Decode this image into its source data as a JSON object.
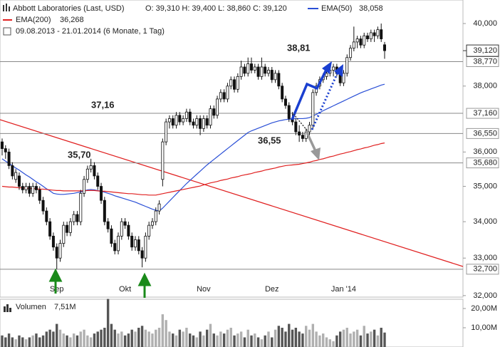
{
  "chart_data": {
    "type": "candlestick",
    "title": "Abbott Laboratories (Last, USD)",
    "quote": "O: 39,310  H: 39,400  L: 38,860  C: 39,120",
    "period": "09.08.2013 - 21.01.2014 (6 Monate, 1 Tag)",
    "log": true,
    "ylim": [
      31.96,
      40.78
    ],
    "yticks": [
      {
        "value": 40,
        "label": "40,000"
      },
      {
        "value": 38,
        "label": "38,000"
      },
      {
        "value": 36,
        "label": "36,000"
      },
      {
        "value": 35,
        "label": "35,000"
      },
      {
        "value": 34,
        "label": "34,000"
      },
      {
        "value": 33,
        "label": "33,000"
      },
      {
        "value": 32,
        "label": "32,000"
      }
    ],
    "categories": [
      null,
      null,
      null,
      null,
      null,
      null,
      null,
      null,
      null,
      null,
      null,
      null,
      null,
      null,
      null,
      null,
      "Sep",
      null,
      null,
      null,
      null,
      null,
      null,
      null,
      null,
      null,
      null,
      null,
      null,
      null,
      null,
      null,
      null,
      null,
      null,
      null,
      "Okt",
      null,
      null,
      null,
      null,
      null,
      null,
      null,
      null,
      null,
      null,
      null,
      null,
      null,
      null,
      null,
      null,
      null,
      null,
      null,
      null,
      null,
      null,
      "Nov",
      null,
      null,
      null,
      null,
      null,
      null,
      null,
      null,
      null,
      null,
      null,
      null,
      null,
      null,
      null,
      null,
      null,
      null,
      null,
      "Dez",
      null,
      null,
      null,
      null,
      null,
      null,
      null,
      null,
      null,
      null,
      null,
      null,
      null,
      null,
      null,
      null,
      null,
      null,
      null,
      null,
      "Jan '14",
      null,
      null,
      null,
      null,
      null,
      null,
      null,
      null,
      null,
      null,
      null,
      null
    ],
    "ohlc": [
      [
        36.3,
        36.4,
        35.9,
        36.1
      ],
      [
        36.1,
        36.2,
        35.8,
        36.0
      ],
      [
        36.0,
        36.1,
        35.5,
        35.6
      ],
      [
        35.6,
        35.7,
        35.2,
        35.3
      ],
      [
        35.2,
        35.5,
        35.1,
        35.4
      ],
      [
        35.3,
        35.4,
        34.9,
        35.0
      ],
      [
        35.0,
        35.1,
        34.8,
        34.9
      ],
      [
        34.9,
        35.1,
        34.8,
        35.0
      ],
      [
        35.0,
        35.1,
        34.7,
        34.8
      ],
      [
        34.8,
        35.1,
        34.7,
        35.0
      ],
      [
        35.0,
        35.1,
        34.8,
        34.9
      ],
      [
        34.9,
        35.0,
        34.5,
        34.6
      ],
      [
        34.6,
        34.7,
        34.2,
        34.3
      ],
      [
        34.3,
        34.4,
        33.9,
        34.0
      ],
      [
        34.0,
        34.1,
        33.5,
        33.6
      ],
      [
        33.6,
        33.7,
        33.2,
        33.3
      ],
      [
        33.3,
        33.4,
        32.7,
        33.0
      ],
      [
        33.0,
        33.5,
        32.9,
        33.4
      ],
      [
        33.4,
        34.0,
        33.3,
        33.9
      ],
      [
        33.9,
        34.0,
        33.6,
        33.7
      ],
      [
        33.7,
        34.1,
        33.6,
        34.0
      ],
      [
        34.0,
        34.3,
        33.9,
        34.2
      ],
      [
        34.2,
        34.3,
        33.9,
        34.0
      ],
      [
        34.0,
        34.9,
        33.9,
        34.8
      ],
      [
        34.8,
        35.3,
        34.7,
        35.2
      ],
      [
        35.2,
        35.6,
        35.1,
        35.5
      ],
      [
        35.5,
        35.8,
        35.4,
        35.6
      ],
      [
        35.6,
        35.7,
        35.2,
        35.3
      ],
      [
        35.3,
        35.4,
        34.9,
        35.0
      ],
      [
        35.0,
        35.1,
        34.5,
        34.6
      ],
      [
        34.6,
        34.7,
        33.9,
        34.0
      ],
      [
        34.0,
        34.1,
        33.7,
        33.8
      ],
      [
        33.8,
        33.9,
        33.3,
        33.4
      ],
      [
        33.4,
        33.5,
        33.1,
        33.2
      ],
      [
        33.2,
        33.7,
        33.1,
        33.6
      ],
      [
        33.6,
        34.1,
        33.5,
        34.0
      ],
      [
        34.0,
        34.1,
        33.8,
        33.9
      ],
      [
        33.9,
        34.0,
        33.5,
        33.6
      ],
      [
        33.6,
        33.7,
        33.2,
        33.3
      ],
      [
        33.3,
        33.6,
        33.2,
        33.5
      ],
      [
        33.5,
        33.6,
        33.1,
        33.2
      ],
      [
        33.2,
        33.3,
        32.75,
        33.0
      ],
      [
        33.0,
        33.7,
        32.9,
        33.6
      ],
      [
        33.6,
        34.0,
        33.5,
        33.9
      ],
      [
        33.9,
        34.1,
        33.8,
        34.0
      ],
      [
        34.0,
        34.4,
        33.9,
        34.3
      ],
      [
        34.3,
        34.6,
        34.2,
        34.5
      ],
      [
        35.2,
        36.4,
        35.0,
        36.3
      ],
      [
        36.3,
        37.0,
        36.2,
        36.9
      ],
      [
        36.9,
        37.1,
        36.7,
        37.0
      ],
      [
        37.0,
        37.1,
        36.7,
        36.8
      ],
      [
        36.8,
        37.2,
        36.7,
        37.1
      ],
      [
        37.1,
        37.2,
        36.8,
        36.9
      ],
      [
        36.9,
        37.1,
        36.8,
        37.0
      ],
      [
        37.0,
        37.3,
        36.9,
        37.2
      ],
      [
        37.2,
        37.3,
        36.8,
        36.9
      ],
      [
        36.9,
        37.0,
        36.7,
        36.8
      ],
      [
        36.8,
        37.1,
        36.7,
        37.0
      ],
      [
        37.0,
        37.1,
        36.5,
        36.7
      ],
      [
        36.7,
        37.1,
        36.6,
        37.0
      ],
      [
        37.0,
        37.1,
        36.7,
        36.8
      ],
      [
        36.8,
        37.4,
        36.7,
        37.3
      ],
      [
        37.3,
        37.4,
        37.0,
        37.1
      ],
      [
        37.1,
        37.7,
        37.0,
        37.6
      ],
      [
        37.6,
        37.9,
        37.5,
        37.8
      ],
      [
        37.8,
        37.9,
        37.5,
        37.6
      ],
      [
        37.6,
        38.1,
        37.5,
        38.0
      ],
      [
        38.0,
        38.3,
        37.9,
        38.2
      ],
      [
        38.2,
        38.3,
        37.8,
        37.9
      ],
      [
        37.9,
        38.4,
        37.8,
        38.3
      ],
      [
        38.3,
        38.8,
        38.2,
        38.6
      ],
      [
        38.6,
        38.7,
        38.3,
        38.4
      ],
      [
        38.4,
        38.9,
        38.3,
        38.7
      ],
      [
        38.7,
        38.9,
        38.4,
        38.5
      ],
      [
        38.5,
        38.7,
        38.4,
        38.6
      ],
      [
        38.6,
        38.7,
        38.2,
        38.3
      ],
      [
        38.3,
        38.9,
        38.2,
        38.6
      ],
      [
        38.6,
        38.7,
        38.3,
        38.4
      ],
      [
        38.4,
        38.6,
        38.3,
        38.5
      ],
      [
        38.5,
        38.6,
        38.1,
        38.2
      ],
      [
        38.2,
        38.5,
        38.1,
        38.4
      ],
      [
        38.4,
        38.5,
        37.9,
        38.0
      ],
      [
        38.0,
        38.1,
        37.5,
        37.6
      ],
      [
        37.6,
        37.7,
        37.3,
        37.4
      ],
      [
        37.4,
        37.5,
        36.9,
        37.0
      ],
      [
        37.0,
        37.2,
        36.8,
        36.9
      ],
      [
        36.9,
        37.0,
        36.5,
        36.6
      ],
      [
        36.6,
        36.8,
        36.3,
        36.5
      ],
      [
        36.5,
        36.6,
        36.3,
        36.4
      ],
      [
        36.4,
        36.7,
        36.3,
        36.6
      ],
      [
        36.6,
        36.9,
        36.5,
        36.8
      ],
      [
        36.8,
        37.9,
        36.7,
        37.8
      ],
      [
        37.8,
        38.1,
        37.7,
        38.0
      ],
      [
        38.0,
        38.3,
        37.9,
        38.2
      ],
      [
        38.2,
        38.4,
        38.1,
        38.3
      ],
      [
        38.3,
        38.5,
        38.2,
        38.4
      ],
      [
        38.4,
        38.6,
        38.3,
        38.5
      ],
      [
        38.5,
        38.7,
        38.3,
        38.6
      ],
      [
        38.6,
        38.7,
        38.3,
        38.4
      ],
      [
        38.4,
        38.5,
        38.0,
        38.1
      ],
      [
        38.1,
        38.5,
        38.0,
        38.4
      ],
      [
        38.4,
        39.0,
        38.3,
        38.9
      ],
      [
        38.9,
        39.3,
        38.8,
        39.2
      ],
      [
        39.2,
        39.9,
        39.1,
        39.4
      ],
      [
        39.4,
        39.6,
        39.2,
        39.5
      ],
      [
        39.5,
        39.6,
        39.2,
        39.3
      ],
      [
        39.3,
        39.7,
        39.2,
        39.6
      ],
      [
        39.6,
        39.7,
        39.4,
        39.5
      ],
      [
        39.5,
        39.8,
        39.4,
        39.7
      ],
      [
        39.7,
        39.8,
        39.4,
        39.6
      ],
      [
        39.6,
        39.9,
        39.5,
        39.8
      ],
      [
        39.8,
        40.0,
        39.4,
        39.5
      ],
      [
        39.31,
        39.4,
        38.86,
        39.12
      ]
    ],
    "series": [
      {
        "name": "EMA(50)",
        "color": "#2a4fd6",
        "last_label": "38,058",
        "values": [
          35.8,
          35.73,
          35.67,
          35.6,
          35.53,
          35.47,
          35.4,
          35.33,
          35.27,
          35.2,
          35.13,
          35.07,
          35.0,
          34.93,
          34.87,
          34.8,
          34.78,
          34.77,
          34.77,
          34.78,
          34.79,
          34.8,
          34.82,
          34.84,
          34.87,
          34.9,
          34.91,
          34.9,
          34.88,
          34.86,
          34.83,
          34.8,
          34.77,
          34.73,
          34.7,
          34.67,
          34.64,
          34.61,
          34.58,
          34.55,
          34.51,
          34.47,
          34.43,
          34.39,
          34.35,
          34.32,
          34.3,
          34.38,
          34.48,
          34.58,
          34.68,
          34.78,
          34.88,
          34.98,
          35.08,
          35.17,
          35.26,
          35.35,
          35.44,
          35.53,
          35.62,
          35.7,
          35.78,
          35.86,
          35.94,
          36.02,
          36.1,
          36.18,
          36.26,
          36.34,
          36.42,
          36.5,
          36.58,
          36.63,
          36.67,
          36.71,
          36.75,
          36.79,
          36.83,
          36.87,
          36.9,
          36.93,
          36.95,
          36.97,
          36.98,
          36.99,
          37.0,
          37.0,
          37.0,
          37.01,
          37.03,
          37.08,
          37.13,
          37.18,
          37.24,
          37.29,
          37.34,
          37.39,
          37.44,
          37.49,
          37.54,
          37.59,
          37.64,
          37.69,
          37.74,
          37.79,
          37.83,
          37.87,
          37.91,
          37.95,
          37.99,
          38.03,
          38.058
        ]
      },
      {
        "name": "EMA(200)",
        "color": "#e02020",
        "last_label": "36,268",
        "values": [
          35.0,
          34.99,
          34.98,
          34.98,
          34.97,
          34.96,
          34.96,
          34.95,
          34.94,
          34.94,
          34.93,
          34.92,
          34.92,
          34.91,
          34.9,
          34.89,
          34.88,
          34.88,
          34.87,
          34.87,
          34.87,
          34.87,
          34.87,
          34.87,
          34.87,
          34.88,
          34.88,
          34.88,
          34.87,
          34.86,
          34.86,
          34.85,
          34.84,
          34.83,
          34.82,
          34.81,
          34.8,
          34.79,
          34.79,
          34.78,
          34.77,
          34.76,
          34.76,
          34.75,
          34.75,
          34.75,
          34.77,
          34.79,
          34.81,
          34.83,
          34.85,
          34.87,
          34.89,
          34.91,
          34.93,
          34.95,
          34.97,
          34.99,
          35.01,
          35.04,
          35.07,
          35.1,
          35.12,
          35.14,
          35.17,
          35.19,
          35.21,
          35.24,
          35.26,
          35.28,
          35.31,
          35.33,
          35.35,
          35.37,
          35.4,
          35.42,
          35.44,
          35.47,
          35.49,
          35.51,
          35.53,
          35.56,
          35.58,
          35.6,
          35.61,
          35.62,
          35.63,
          35.64,
          35.66,
          35.68,
          35.7,
          35.73,
          35.75,
          35.78,
          35.8,
          35.83,
          35.86,
          35.88,
          35.91,
          35.94,
          35.96,
          35.99,
          36.01,
          36.04,
          36.07,
          36.09,
          36.12,
          36.14,
          36.17,
          36.2,
          36.22,
          36.25,
          36.268
        ]
      }
    ],
    "levels": [
      {
        "value": 38.77,
        "label": "38,770"
      },
      {
        "value": 37.16,
        "label": "37,160"
      },
      {
        "value": 36.55,
        "label": "36,550"
      },
      {
        "value": 35.68,
        "label": "35,680"
      },
      {
        "value": 32.7,
        "label": "32,700"
      }
    ],
    "last": {
      "value": 39.12,
      "label": "39,120"
    },
    "annotations": [
      "37,16",
      "35,70",
      "38,81",
      "36,55"
    ],
    "volume": {
      "name": "Volumen",
      "last_label": "7,51M",
      "ylim": [
        0,
        24.8
      ],
      "yticks": [
        {
          "value": 20,
          "label": "20,00M"
        },
        {
          "value": 10,
          "label": "10,00M"
        }
      ],
      "values": [
        6,
        5,
        7,
        5,
        4,
        6,
        5,
        4,
        5,
        6,
        7,
        5,
        6,
        8,
        9,
        8,
        12,
        9,
        7,
        6,
        5,
        7,
        6,
        8,
        9,
        6,
        5,
        7,
        8,
        9,
        10,
        25,
        12,
        9,
        7,
        8,
        6,
        7,
        9,
        8,
        10,
        11,
        9,
        8,
        7,
        9,
        10,
        17,
        14,
        8,
        7,
        6,
        9,
        8,
        10,
        7,
        6,
        5,
        8,
        6,
        9,
        12,
        7,
        6,
        8,
        7,
        9,
        10,
        6,
        7,
        8,
        5,
        9,
        6,
        7,
        5,
        4,
        6,
        8,
        5,
        9,
        11,
        10,
        8,
        12,
        9,
        10,
        8,
        7,
        11,
        9,
        12,
        8,
        6,
        7,
        5,
        4,
        3,
        6,
        8,
        9,
        10,
        7,
        8,
        9,
        6,
        11,
        7,
        8,
        9,
        6,
        10,
        7.51
      ]
    }
  }
}
